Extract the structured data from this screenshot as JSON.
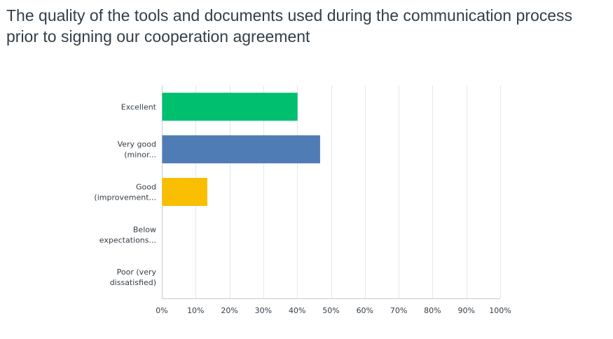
{
  "chart_data": {
    "type": "bar",
    "orientation": "horizontal",
    "title": "The quality of the tools and documents used during the communication process prior to signing our cooperation agreement",
    "categories": [
      [
        "Excellent"
      ],
      [
        "Very good",
        "(minor..."
      ],
      [
        "Good",
        "(improvement..."
      ],
      [
        "Below",
        "expectations..."
      ],
      [
        "Poor (very",
        "dissatisfied)"
      ]
    ],
    "values": [
      40,
      46.67,
      13.33,
      0,
      0
    ],
    "colors": [
      "#00bf6f",
      "#507cb6",
      "#f9be00",
      "#6bc8cd",
      "#ff8b4f"
    ],
    "xlim": [
      0,
      100
    ],
    "x_ticks": [
      "0%",
      "10%",
      "20%",
      "30%",
      "40%",
      "50%",
      "60%",
      "70%",
      "80%",
      "90%",
      "100%"
    ],
    "grid": true,
    "xlabel": "",
    "ylabel": ""
  }
}
